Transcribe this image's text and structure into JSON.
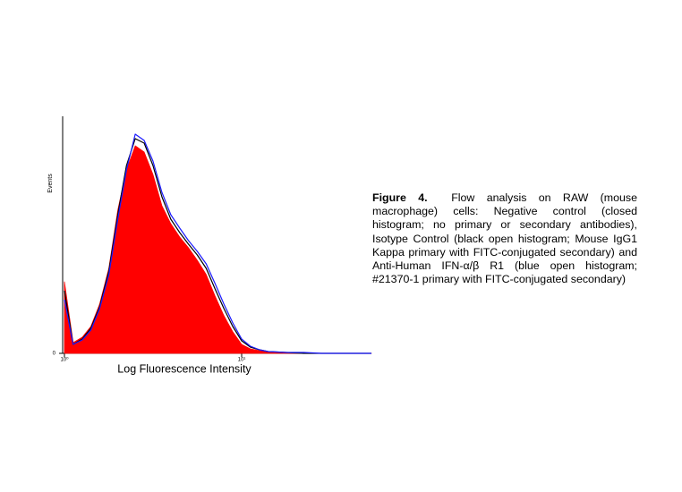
{
  "chart_data": {
    "type": "histogram-overlay",
    "y_label": "Events",
    "x_label": "Log Fluorescence Intensity",
    "x_log": true,
    "xlim": [
      1,
      54
    ],
    "ylim": [
      0,
      265
    ],
    "xticks": [
      {
        "value": 1,
        "label": "10⁰"
      },
      {
        "value": 10,
        "label": "10¹"
      }
    ],
    "yticks": [
      0
    ],
    "x": [
      1,
      1.12,
      1.26,
      1.41,
      1.58,
      1.78,
      2,
      2.24,
      2.51,
      2.82,
      3.16,
      3.55,
      3.98,
      4.47,
      5.01,
      5.62,
      6.31,
      7.08,
      7.94,
      8.91,
      10,
      11.2,
      12.6,
      14.1,
      17.8,
      22.4,
      28.2,
      54
    ],
    "series": [
      {
        "color": "#ff0000",
        "filled": true,
        "values": [
          80,
          12,
          18,
          30,
          55,
          95,
          160,
          205,
          232,
          225,
          200,
          165,
          145,
          130,
          118,
          104,
          88,
          64,
          42,
          24,
          10,
          5,
          3,
          2,
          1,
          0,
          0,
          0
        ]
      },
      {
        "color": "#000000",
        "filled": false,
        "values": [
          70,
          10,
          16,
          28,
          52,
          92,
          155,
          210,
          240,
          235,
          210,
          175,
          150,
          135,
          122,
          110,
          95,
          72,
          50,
          30,
          14,
          7,
          4,
          2,
          1,
          0,
          0,
          0
        ]
      },
      {
        "color": "#1a1aff",
        "filled": false,
        "values": [
          60,
          10,
          15,
          26,
          50,
          88,
          150,
          205,
          245,
          238,
          215,
          180,
          155,
          140,
          126,
          114,
          100,
          78,
          55,
          34,
          16,
          8,
          4,
          2,
          1,
          1,
          0,
          0
        ]
      }
    ],
    "caption_label": "Figure 4.",
    "caption_text": "Flow analysis on RAW (mouse macrophage) cells: Negative control (closed histogram; no primary or secondary antibodies), Isotype Control (black open histogram; Mouse IgG1 Kappa primary with FITC-conjugated secondary) and Anti-Human IFN-α/β R1 (blue open histogram; #21370-1 primary with FITC-conjugated secondary)"
  }
}
